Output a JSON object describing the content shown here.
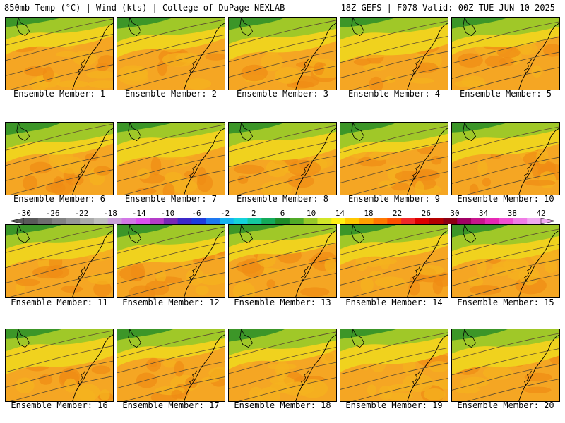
{
  "header": {
    "left": "850mb Temp (°C) | Wind (kts) | College of DuPage NEXLAB",
    "right": "18Z GEFS | F078 Valid: 00Z TUE JUN 10 2025"
  },
  "panels": [
    {
      "label": "Ensemble Member: 1"
    },
    {
      "label": "Ensemble Member: 2"
    },
    {
      "label": "Ensemble Member: 3"
    },
    {
      "label": "Ensemble Member: 4"
    },
    {
      "label": "Ensemble Member: 5"
    },
    {
      "label": "Ensemble Member: 6"
    },
    {
      "label": "Ensemble Member: 7"
    },
    {
      "label": "Ensemble Member: 8"
    },
    {
      "label": "Ensemble Member: 9"
    },
    {
      "label": "Ensemble Member: 10"
    },
    {
      "label": "Ensemble Member: 11"
    },
    {
      "label": "Ensemble Member: 12"
    },
    {
      "label": "Ensemble Member: 13"
    },
    {
      "label": "Ensemble Member: 14"
    },
    {
      "label": "Ensemble Member: 15"
    },
    {
      "label": "Ensemble Member: 16"
    },
    {
      "label": "Ensemble Member: 17"
    },
    {
      "label": "Ensemble Member: 18"
    },
    {
      "label": "Ensemble Member: 19"
    },
    {
      "label": "Ensemble Member: 20"
    }
  ],
  "colorbar": {
    "labels": [
      "-30",
      "-26",
      "-22",
      "-18",
      "-14",
      "-10",
      "-6",
      "-2",
      "2",
      "6",
      "10",
      "14",
      "18",
      "22",
      "26",
      "30",
      "34",
      "38",
      "42"
    ],
    "colors": [
      "#5a5a5a",
      "#6e6e6e",
      "#828282",
      "#969696",
      "#aaaaaa",
      "#bebebe",
      "#c8a0d8",
      "#d278e6",
      "#dc50f0",
      "#b43cc8",
      "#7828b4",
      "#3c28c8",
      "#1e3cdc",
      "#1e78f0",
      "#14b4f0",
      "#14d2dc",
      "#14c8a0",
      "#14aa5a",
      "#1e8c28",
      "#50aa28",
      "#96c828",
      "#d2e628",
      "#fff014",
      "#ffc800",
      "#ffa000",
      "#ff7800",
      "#ff5000",
      "#f02828",
      "#dc0000",
      "#b40000",
      "#8c0014",
      "#a00064",
      "#c8148c",
      "#e628b4",
      "#f050d2",
      "#f07ce6",
      "#f0aaf0"
    ]
  }
}
